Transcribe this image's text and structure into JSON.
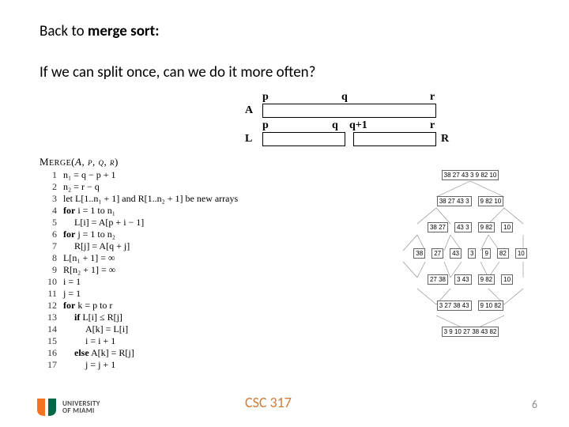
{
  "title_prefix": "Back to ",
  "title_bold": "merge sort:",
  "subtitle": "If we can split once, can we do it more often?",
  "arrays": {
    "row1_ptrs": {
      "p": "p",
      "q": "q",
      "r": "r"
    },
    "row1_label": "A",
    "row2_ptrs": {
      "p": "p",
      "q": "q",
      "q1": "q+1",
      "r": "r"
    },
    "row2_labelL": "L",
    "row2_labelR": "R",
    "box1_width": 220,
    "boxL_width": 105,
    "boxR_width": 105,
    "gap": 10,
    "p_pos_a": 0,
    "q_pos_a": 100,
    "r_pos_a": 212,
    "p_pos_b": 0,
    "q_pos_b": 90,
    "q1_pos_b": 110,
    "r_pos_b": 212
  },
  "algo": {
    "head": "Merge(A, p, q, r)",
    "lines": [
      {
        "n": "1",
        "ind": "i1",
        "t": "n₁ = q − p + 1"
      },
      {
        "n": "2",
        "ind": "i1",
        "t": "n₂ = r − q"
      },
      {
        "n": "3",
        "ind": "i1",
        "t": "let L[1..n₁ + 1] and R[1..n₂ + 1] be new arrays"
      },
      {
        "n": "4",
        "ind": "i1",
        "t": "for i = 1 to n₁",
        "b": "for"
      },
      {
        "n": "5",
        "ind": "i2",
        "t": "L[i] = A[p + i − 1]"
      },
      {
        "n": "6",
        "ind": "i1",
        "t": "for j = 1 to n₂",
        "b": "for"
      },
      {
        "n": "7",
        "ind": "i2",
        "t": "R[j] = A[q + j]"
      },
      {
        "n": "8",
        "ind": "i1",
        "t": "L[n₁ + 1] = ∞"
      },
      {
        "n": "9",
        "ind": "i1",
        "t": "R[n₂ + 1] = ∞"
      },
      {
        "n": "10",
        "ind": "i1",
        "t": "i = 1"
      },
      {
        "n": "11",
        "ind": "i1",
        "t": "j = 1"
      },
      {
        "n": "12",
        "ind": "i1",
        "t": "for k = p to r",
        "b": "for"
      },
      {
        "n": "13",
        "ind": "i2",
        "t": "if L[i] ≤ R[j]",
        "b": "if"
      },
      {
        "n": "14",
        "ind": "i3",
        "t": "A[k] = L[i]"
      },
      {
        "n": "15",
        "ind": "i3",
        "t": "i = i + 1"
      },
      {
        "n": "16",
        "ind": "i2",
        "t": "else A[k] = R[j]",
        "b": "else"
      },
      {
        "n": "17",
        "ind": "i3",
        "t": "j = j + 1"
      }
    ]
  },
  "tree": {
    "levels": [
      [
        "38 27 43 3 9 82 10"
      ],
      [
        "38 27 43 3",
        "9 82 10"
      ],
      [
        "38 27",
        "43 3",
        "9 82",
        "10"
      ],
      [
        "38",
        "27",
        "43",
        "3",
        "9",
        "82",
        "10"
      ],
      [
        "27 38",
        "3 43",
        "9 82",
        "10"
      ],
      [
        "3 27 38 43",
        "9 10 82"
      ],
      [
        "3 9 10 27 38 43 82"
      ]
    ]
  },
  "footer": {
    "course": "CSC 317",
    "page": "6",
    "uni1": "UNIVERSITY",
    "uni2": "OF MIAMI"
  },
  "colors": {
    "accent": "#ce7c3a",
    "logo_orange": "#f47321",
    "logo_green": "#006847"
  }
}
